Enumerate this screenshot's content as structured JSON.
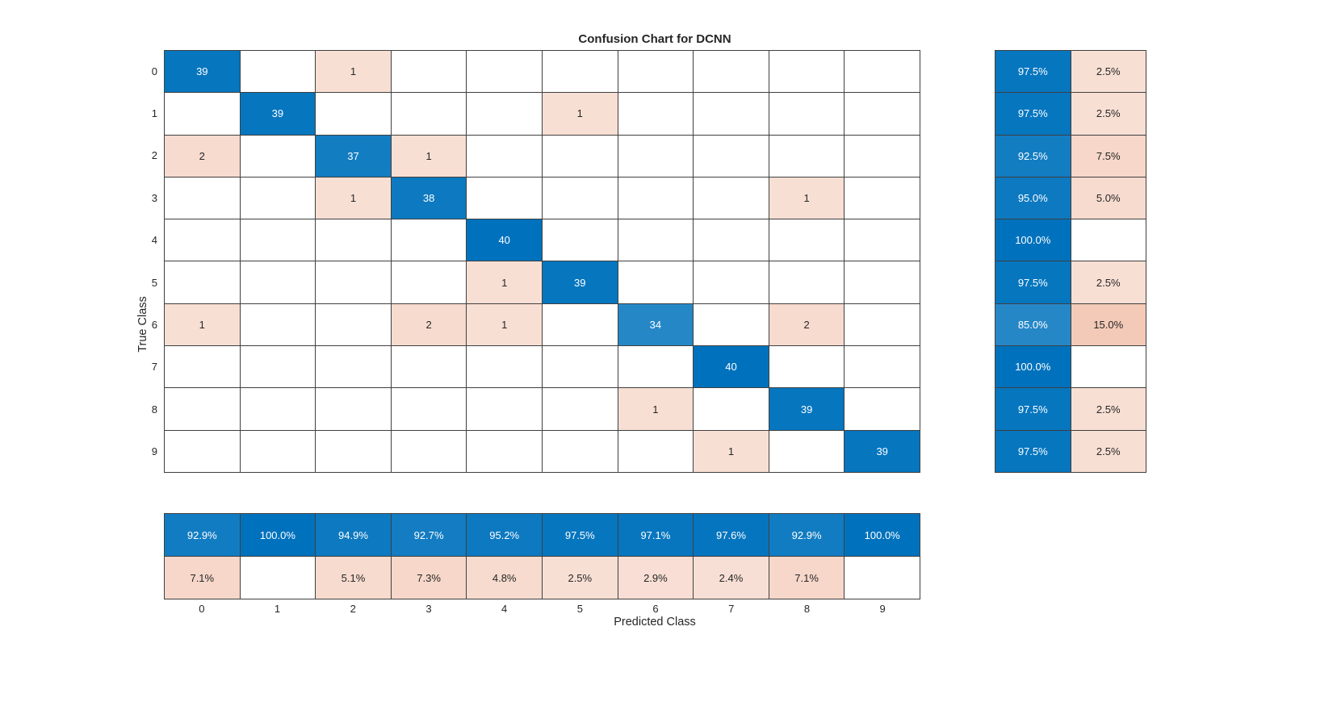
{
  "chart_data": {
    "type": "heatmap",
    "title": "Confusion Chart for DCNN",
    "xlabel": "Predicted Class",
    "ylabel": "True Class",
    "classes": [
      "0",
      "1",
      "2",
      "3",
      "4",
      "5",
      "6",
      "7",
      "8",
      "9"
    ],
    "matrix": [
      [
        39,
        0,
        1,
        0,
        0,
        0,
        0,
        0,
        0,
        0
      ],
      [
        0,
        39,
        0,
        0,
        0,
        1,
        0,
        0,
        0,
        0
      ],
      [
        2,
        0,
        37,
        1,
        0,
        0,
        0,
        0,
        0,
        0
      ],
      [
        0,
        0,
        1,
        38,
        0,
        0,
        0,
        0,
        1,
        0
      ],
      [
        0,
        0,
        0,
        0,
        40,
        0,
        0,
        0,
        0,
        0
      ],
      [
        0,
        0,
        0,
        0,
        1,
        39,
        0,
        0,
        0,
        0
      ],
      [
        1,
        0,
        0,
        2,
        1,
        0,
        34,
        0,
        2,
        0
      ],
      [
        0,
        0,
        0,
        0,
        0,
        0,
        0,
        40,
        0,
        0
      ],
      [
        0,
        0,
        0,
        0,
        0,
        0,
        1,
        0,
        39,
        0
      ],
      [
        0,
        0,
        0,
        0,
        0,
        0,
        0,
        1,
        0,
        39
      ]
    ],
    "row_summary": {
      "correct_pct": [
        97.5,
        97.5,
        92.5,
        95.0,
        100.0,
        97.5,
        85.0,
        100.0,
        97.5,
        97.5
      ],
      "incorrect_pct": [
        2.5,
        2.5,
        7.5,
        5.0,
        0,
        2.5,
        15.0,
        0,
        2.5,
        2.5
      ]
    },
    "column_summary": {
      "correct_pct": [
        92.9,
        100.0,
        94.9,
        92.7,
        95.2,
        97.5,
        97.1,
        97.6,
        92.9,
        100.0
      ],
      "incorrect_pct": [
        7.1,
        0,
        5.1,
        7.3,
        4.8,
        2.5,
        2.9,
        2.4,
        7.1,
        0
      ]
    },
    "grid": true,
    "legend_position": "none"
  },
  "colors": {
    "diagonal": "#0072BD",
    "off_diagonal": "#D95319",
    "grid_line": "#3F3F3F",
    "text_dark": "#262626",
    "text_light": "#FFFFFF",
    "background": "#FFFFFF"
  }
}
